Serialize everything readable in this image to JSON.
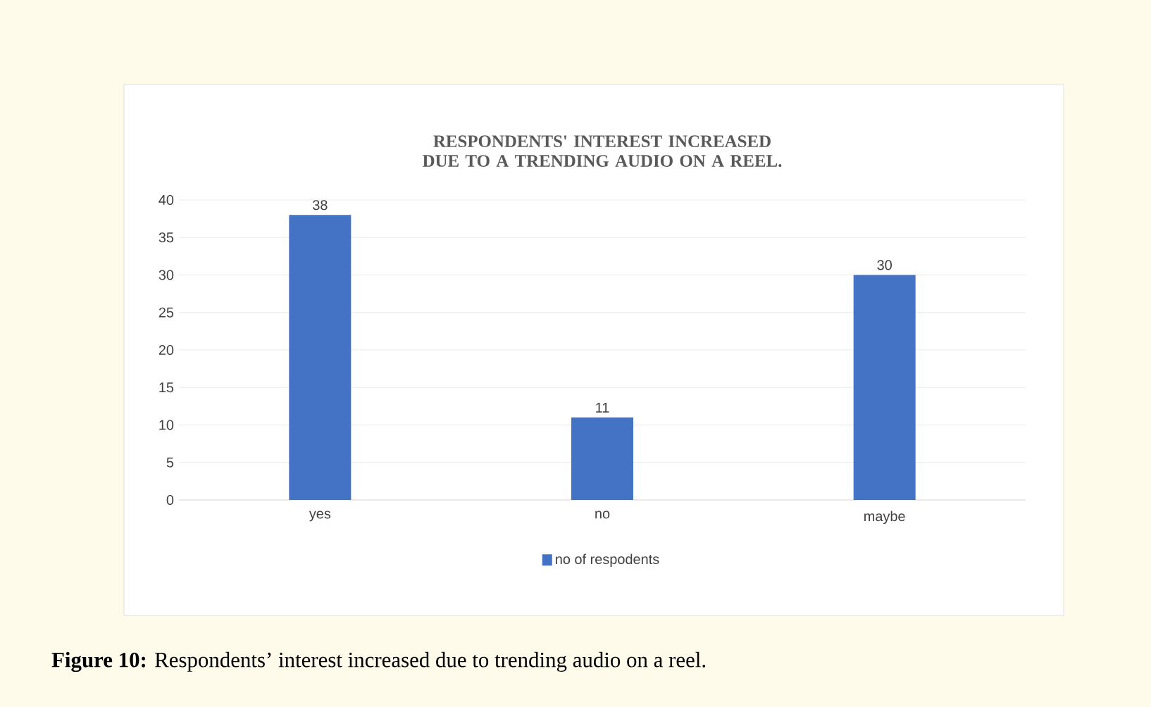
{
  "chart_data": {
    "type": "bar",
    "title": "RESPONDENTS' INTEREST INCREASED DUE TO A TRENDING AUDIO ON A REEL.",
    "categories": [
      "yes",
      "no",
      "maybe"
    ],
    "series": [
      {
        "name": "no of respodents",
        "color": "#4472c4",
        "values": [
          38,
          11,
          30
        ]
      }
    ],
    "ylim": [
      0,
      40
    ],
    "yticks": [
      0,
      5,
      10,
      15,
      20,
      25,
      30,
      35,
      40
    ],
    "grid": "y",
    "legend": "bottom",
    "data_labels": true,
    "annotations": [
      "**Figure 10:** Respondents’ interest increased due to trending audio on a reel."
    ]
  }
}
